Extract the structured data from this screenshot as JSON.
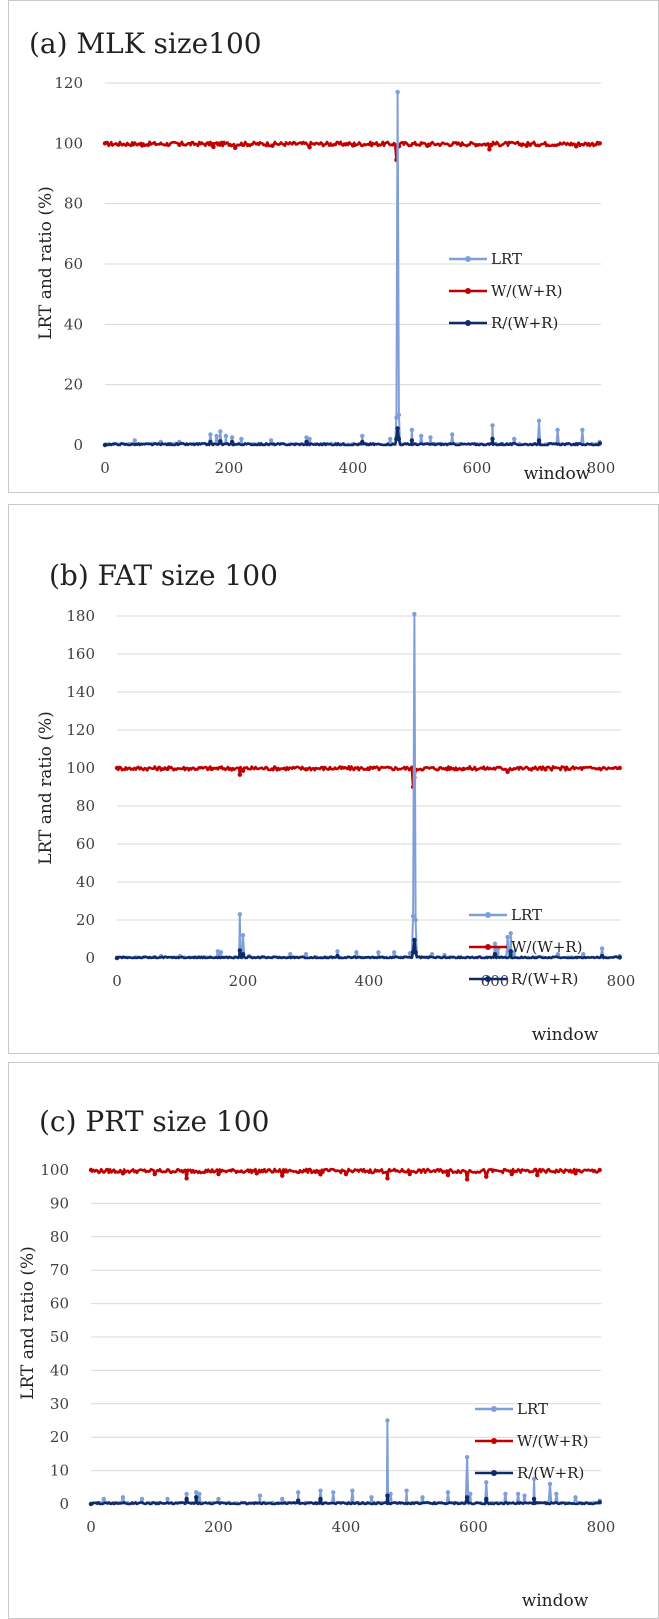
{
  "chart_data": [
    {
      "type": "line",
      "title": "(a) MLK size100",
      "xlabel": "window",
      "ylabel": "LRT and ratio (%)",
      "xlim": [
        0,
        800
      ],
      "ylim": [
        0,
        120
      ],
      "x_ticks": [
        "0",
        "200",
        "400",
        "600",
        "800"
      ],
      "y_ticks": [
        "0",
        "20",
        "40",
        "60",
        "80",
        "100",
        "120"
      ],
      "grid": "horizontal",
      "legend_position": "right-middle",
      "series": [
        {
          "name": "LRT",
          "color": "#7f9fd9",
          "points": [
            [
              0,
              0
            ],
            [
              48,
              1.5
            ],
            [
              90,
              1
            ],
            [
              120,
              1
            ],
            [
              170,
              3.5
            ],
            [
              180,
              3
            ],
            [
              186,
              4.5
            ],
            [
              195,
              3
            ],
            [
              205,
              2.5
            ],
            [
              220,
              2
            ],
            [
              268,
              1.5
            ],
            [
              325,
              2.5
            ],
            [
              330,
              2
            ],
            [
              415,
              3
            ],
            [
              460,
              2
            ],
            [
              470,
              9
            ],
            [
              472,
              117
            ],
            [
              474,
              10
            ],
            [
              495,
              5
            ],
            [
              510,
              3
            ],
            [
              525,
              2.5
            ],
            [
              560,
              3.5
            ],
            [
              625,
              6.5
            ],
            [
              660,
              2
            ],
            [
              700,
              8
            ],
            [
              730,
              5
            ],
            [
              770,
              5
            ],
            [
              798,
              1
            ]
          ],
          "baseline": 0.4
        },
        {
          "name": "W/(W+R)",
          "color": "#c00000",
          "points": [
            [
              0,
              100
            ],
            [
              60,
              99.3
            ],
            [
              120,
              99.5
            ],
            [
              175,
              98.8
            ],
            [
              210,
              98.5
            ],
            [
              270,
              99.2
            ],
            [
              330,
              98.7
            ],
            [
              400,
              99.3
            ],
            [
              470,
              94.5
            ],
            [
              474,
              99
            ],
            [
              520,
              99.2
            ],
            [
              620,
              98
            ],
            [
              680,
              99.2
            ],
            [
              760,
              99
            ],
            [
              798,
              100
            ]
          ],
          "baseline": 99.8
        },
        {
          "name": "R/(W+R)",
          "color": "#0f2a6b",
          "points": [
            [
              0,
              0
            ],
            [
              170,
              1
            ],
            [
              186,
              1.2
            ],
            [
              205,
              1
            ],
            [
              325,
              1
            ],
            [
              415,
              1
            ],
            [
              470,
              2
            ],
            [
              472,
              5.5
            ],
            [
              474,
              2
            ],
            [
              495,
              1.5
            ],
            [
              625,
              2
            ],
            [
              700,
              1.5
            ],
            [
              798,
              0.5
            ]
          ],
          "baseline": 0.2
        }
      ]
    },
    {
      "type": "line",
      "title": "(b) FAT size 100",
      "xlabel": "window",
      "ylabel": "LRT and ratio (%)",
      "xlim": [
        0,
        800
      ],
      "ylim": [
        0,
        180
      ],
      "x_ticks": [
        "0",
        "200",
        "400",
        "600",
        "800"
      ],
      "y_ticks": [
        "0",
        "20",
        "40",
        "60",
        "80",
        "100",
        "120",
        "140",
        "160",
        "180"
      ],
      "grid": "horizontal",
      "legend_position": "right-bottom",
      "series": [
        {
          "name": "LRT",
          "color": "#7f9fd9",
          "points": [
            [
              0,
              0
            ],
            [
              70,
              1
            ],
            [
              100,
              1
            ],
            [
              160,
              3.5
            ],
            [
              165,
              3
            ],
            [
              195,
              23
            ],
            [
              200,
              12
            ],
            [
              210,
              1
            ],
            [
              275,
              2
            ],
            [
              300,
              2
            ],
            [
              350,
              3.5
            ],
            [
              380,
              3
            ],
            [
              415,
              3
            ],
            [
              440,
              3
            ],
            [
              465,
              2.5
            ],
            [
              470,
              22
            ],
            [
              472,
              181
            ],
            [
              474,
              20
            ],
            [
              500,
              2
            ],
            [
              520,
              1.5
            ],
            [
              600,
              7.5
            ],
            [
              605,
              5
            ],
            [
              620,
              11
            ],
            [
              625,
              13
            ],
            [
              630,
              3
            ],
            [
              700,
              2
            ],
            [
              740,
              2
            ],
            [
              770,
              5
            ],
            [
              798,
              1
            ]
          ],
          "baseline": 0.4
        },
        {
          "name": "W/(W+R)",
          "color": "#c00000",
          "points": [
            [
              0,
              100
            ],
            [
              80,
              99.5
            ],
            [
              150,
              99.5
            ],
            [
              195,
              96.5
            ],
            [
              200,
              98.5
            ],
            [
              300,
              99.3
            ],
            [
              400,
              99.5
            ],
            [
              470,
              90
            ],
            [
              472,
              95
            ],
            [
              474,
              99
            ],
            [
              550,
              99.5
            ],
            [
              620,
              98
            ],
            [
              680,
              99.3
            ],
            [
              798,
              100
            ]
          ],
          "baseline": 99.8
        },
        {
          "name": "R/(W+R)",
          "color": "#0f2a6b",
          "points": [
            [
              0,
              0
            ],
            [
              195,
              4
            ],
            [
              200,
              2
            ],
            [
              350,
              1
            ],
            [
              470,
              3
            ],
            [
              472,
              9.5
            ],
            [
              474,
              3
            ],
            [
              600,
              2
            ],
            [
              625,
              3.5
            ],
            [
              770,
              1
            ],
            [
              798,
              0.3
            ]
          ],
          "baseline": 0.2
        }
      ]
    },
    {
      "type": "line",
      "title": "(c) PRT size 100",
      "xlabel": "window",
      "ylabel": "LRT and ratio (%)",
      "xlim": [
        0,
        800
      ],
      "ylim": [
        0,
        100
      ],
      "x_ticks": [
        "0",
        "200",
        "400",
        "600",
        "800"
      ],
      "y_ticks": [
        "0",
        "10",
        "20",
        "30",
        "40",
        "50",
        "60",
        "70",
        "80",
        "90",
        "100"
      ],
      "grid": "horizontal",
      "legend_position": "right-bottom",
      "series": [
        {
          "name": "LRT",
          "color": "#7f9fd9",
          "points": [
            [
              0,
              0
            ],
            [
              20,
              1.5
            ],
            [
              50,
              2
            ],
            [
              80,
              1.5
            ],
            [
              120,
              1.5
            ],
            [
              150,
              3
            ],
            [
              165,
              3.5
            ],
            [
              170,
              3
            ],
            [
              200,
              1.5
            ],
            [
              265,
              2.5
            ],
            [
              300,
              1.5
            ],
            [
              325,
              3.5
            ],
            [
              360,
              4
            ],
            [
              380,
              3.5
            ],
            [
              410,
              4
            ],
            [
              440,
              2
            ],
            [
              465,
              25
            ],
            [
              470,
              3
            ],
            [
              495,
              4
            ],
            [
              520,
              2
            ],
            [
              560,
              3.5
            ],
            [
              590,
              14
            ],
            [
              595,
              3
            ],
            [
              620,
              6.5
            ],
            [
              650,
              3
            ],
            [
              670,
              3
            ],
            [
              680,
              2.5
            ],
            [
              695,
              7.5
            ],
            [
              720,
              6
            ],
            [
              730,
              3
            ],
            [
              760,
              2
            ],
            [
              798,
              1
            ]
          ],
          "baseline": 0.4
        },
        {
          "name": "W/(W+R)",
          "color": "#c00000",
          "points": [
            [
              0,
              100
            ],
            [
              50,
              99
            ],
            [
              100,
              98.8
            ],
            [
              150,
              97.5
            ],
            [
              200,
              98.8
            ],
            [
              260,
              99
            ],
            [
              300,
              98.3
            ],
            [
              360,
              98.7
            ],
            [
              400,
              98.8
            ],
            [
              465,
              97.5
            ],
            [
              500,
              98.8
            ],
            [
              560,
              98.5
            ],
            [
              590,
              97.2
            ],
            [
              620,
              98
            ],
            [
              660,
              98.8
            ],
            [
              700,
              98.5
            ],
            [
              760,
              99
            ],
            [
              798,
              100
            ]
          ],
          "baseline": 99.7
        },
        {
          "name": "R/(W+R)",
          "color": "#0f2a6b",
          "points": [
            [
              0,
              0
            ],
            [
              150,
              1.5
            ],
            [
              165,
              2
            ],
            [
              325,
              1
            ],
            [
              360,
              1.5
            ],
            [
              465,
              2.5
            ],
            [
              590,
              2
            ],
            [
              620,
              1.5
            ],
            [
              695,
              1.5
            ],
            [
              798,
              0.5
            ]
          ],
          "baseline": 0.2
        }
      ]
    }
  ]
}
